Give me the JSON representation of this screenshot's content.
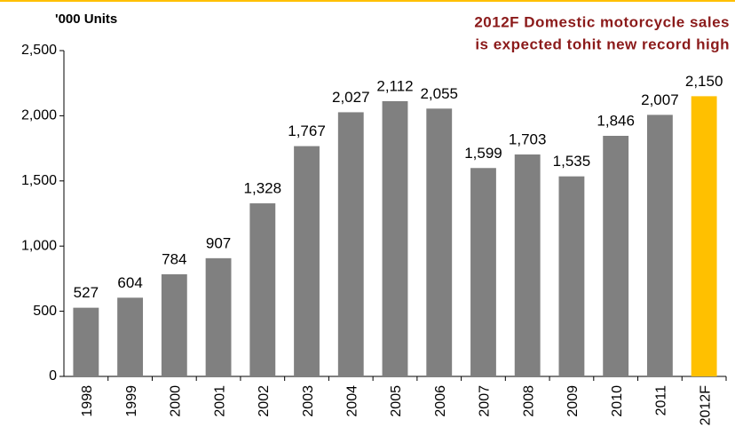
{
  "chart_data": {
    "type": "bar",
    "axis_label": "'000 Units",
    "annotation": [
      "2012F Domestic motorcycle sales",
      "is expected tohit new record high"
    ],
    "categories": [
      "1998",
      "1999",
      "2000",
      "2001",
      "2002",
      "2003",
      "2004",
      "2005",
      "2006",
      "2007",
      "2008",
      "2009",
      "2010",
      "2011",
      "2012F"
    ],
    "values": [
      527,
      604,
      784,
      907,
      1328,
      1767,
      2027,
      2112,
      2055,
      1599,
      1703,
      1535,
      1846,
      2007,
      2150
    ],
    "value_labels": [
      "527",
      "604",
      "784",
      "907",
      "1,328",
      "1,767",
      "2,027",
      "2,112",
      "2,055",
      "1,599",
      "1,703",
      "1,535",
      "1,846",
      "2,007",
      "2,150"
    ],
    "colors": [
      "#808080",
      "#808080",
      "#808080",
      "#808080",
      "#808080",
      "#808080",
      "#808080",
      "#808080",
      "#808080",
      "#808080",
      "#808080",
      "#808080",
      "#808080",
      "#808080",
      "#ffc000"
    ],
    "ylim": [
      0,
      2500
    ],
    "yticks": [
      0,
      500,
      {
        "value": 1000,
        "label": "1,000"
      },
      {
        "value": 1500,
        "label": "1,500"
      },
      {
        "value": 2000,
        "label": "2,000"
      },
      {
        "value": 2500,
        "label": "2,500"
      }
    ]
  }
}
